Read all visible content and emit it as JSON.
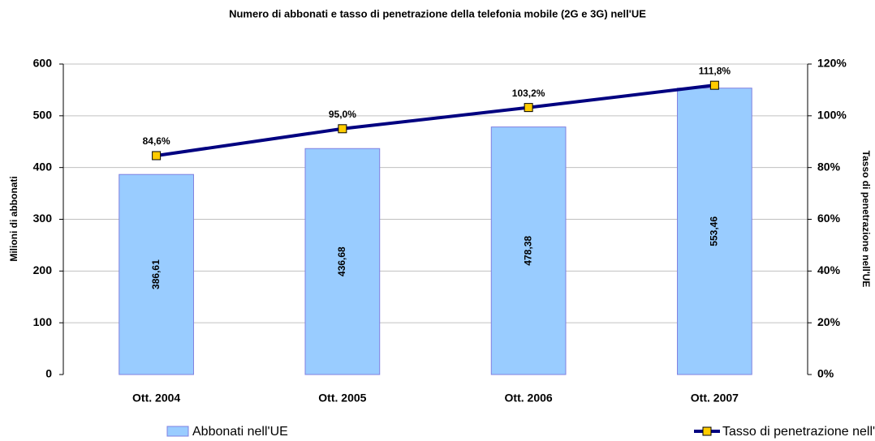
{
  "chart_data": {
    "type": "bar",
    "title": "Numero di abbonati e tasso di penetrazione della telefonia mobile (2G e 3G) nell'UE",
    "y_label": "Milioni di abbonati",
    "y2_label": "Tasso di penetrazione nell'UE",
    "categories": [
      "Ott. 2004",
      "Ott. 2005",
      "Ott. 2006",
      "Ott. 2007"
    ],
    "series": [
      {
        "name": "Abbonati nell'UE",
        "type": "bar",
        "color": "#99ccff",
        "values": [
          386.61,
          436.68,
          478.38,
          553.46
        ],
        "value_labels": [
          "386,61",
          "436,68",
          "478,38",
          "553,46"
        ]
      },
      {
        "name": "Tasso di penetrazione nell'UE",
        "type": "line",
        "axis": "y2",
        "color": "#000080",
        "marker_color": "#ffcc00",
        "values": [
          84.6,
          95.0,
          103.2,
          111.8
        ],
        "value_labels": [
          "84,6%",
          "95,0%",
          "103,2%",
          "111,8%"
        ]
      }
    ],
    "ylim": [
      0,
      600
    ],
    "yticks": [
      0,
      100,
      200,
      300,
      400,
      500,
      600
    ],
    "y2lim": [
      0,
      120
    ],
    "y2ticks": [
      {
        "value": 0,
        "label": "0%"
      },
      {
        "value": 20,
        "label": "20%"
      },
      {
        "value": 40,
        "label": "40%"
      },
      {
        "value": 60,
        "label": "60%"
      },
      {
        "value": 80,
        "label": "80%"
      },
      {
        "value": 100,
        "label": "100%"
      },
      {
        "value": 120,
        "label": "120%"
      }
    ],
    "grid": true,
    "legend": "bottom"
  }
}
